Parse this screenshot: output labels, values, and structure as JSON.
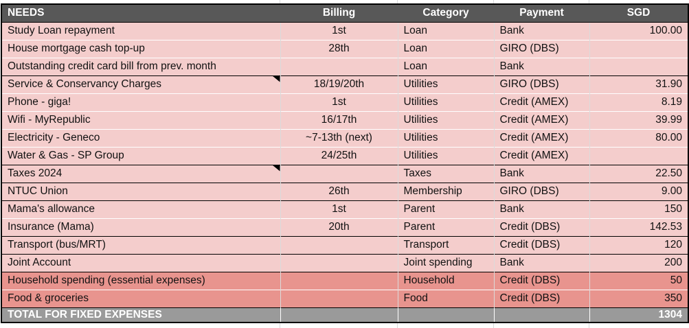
{
  "colors": {
    "header_bg": "#585858",
    "row_light_pink": "#f4cdcc",
    "row_dark_pink": "#e8948e",
    "total_bg": "#9a9a9a",
    "border_black": "#000000"
  },
  "header": {
    "needs": "NEEDS",
    "billing": "Billing",
    "category": "Category",
    "payment": "Payment",
    "sgd": "SGD"
  },
  "rows": [
    {
      "name": "Study Loan repayment",
      "billing": "1st",
      "category": "Loan",
      "payment": "Bank",
      "sgd": "100.00"
    },
    {
      "name": "House mortgage cash top-up",
      "billing": "28th",
      "category": "Loan",
      "payment": "GIRO (DBS)",
      "sgd": ""
    },
    {
      "name": "Outstanding credit card bill from prev. month",
      "billing": "",
      "category": "Loan",
      "payment": "Bank",
      "sgd": ""
    },
    {
      "name": "Service & Conservancy Charges",
      "billing": "18/19/20th",
      "category": "Utilities",
      "payment": "GIRO (DBS)",
      "sgd": "31.90"
    },
    {
      "name": "Phone - giga!",
      "billing": "1st",
      "category": "Utilities",
      "payment": "Credit (AMEX)",
      "sgd": "8.19"
    },
    {
      "name": "Wifi - MyRepublic",
      "billing": "16/17th",
      "category": "Utilities",
      "payment": "Credit (AMEX)",
      "sgd": "39.99"
    },
    {
      "name": "Electricity - Geneco",
      "billing": "~7-13th (next)",
      "category": "Utilities",
      "payment": "Credit (AMEX)",
      "sgd": "80.00"
    },
    {
      "name": "Water & Gas - SP Group",
      "billing": "24/25th",
      "category": "Utilities",
      "payment": "Credit (AMEX)",
      "sgd": ""
    },
    {
      "name": "Taxes 2024",
      "billing": "",
      "category": "Taxes",
      "payment": "Bank",
      "sgd": "22.50"
    },
    {
      "name": "NTUC Union",
      "billing": "26th",
      "category": "Membership",
      "payment": "GIRO (DBS)",
      "sgd": "9.00"
    },
    {
      "name": "Mama's allowance",
      "billing": "1st",
      "category": "Parent",
      "payment": "Bank",
      "sgd": "150"
    },
    {
      "name": "Insurance (Mama)",
      "billing": "20th",
      "category": "Parent",
      "payment": "Credit (DBS)",
      "sgd": "142.53"
    },
    {
      "name": "Transport (bus/MRT)",
      "billing": "",
      "category": "Transport",
      "payment": "Credit (DBS)",
      "sgd": "120"
    },
    {
      "name": "Joint Account",
      "billing": "",
      "category": "Joint spending",
      "payment": "Bank",
      "sgd": "200"
    },
    {
      "name": "Household spending (essential expenses)",
      "billing": "",
      "category": "Household",
      "payment": "Credit (DBS)",
      "sgd": "50"
    },
    {
      "name": "Food & groceries",
      "billing": "",
      "category": "Food",
      "payment": "Credit (DBS)",
      "sgd": "350"
    }
  ],
  "total": {
    "label": "TOTAL FOR FIXED EXPENSES",
    "value": "1304"
  }
}
